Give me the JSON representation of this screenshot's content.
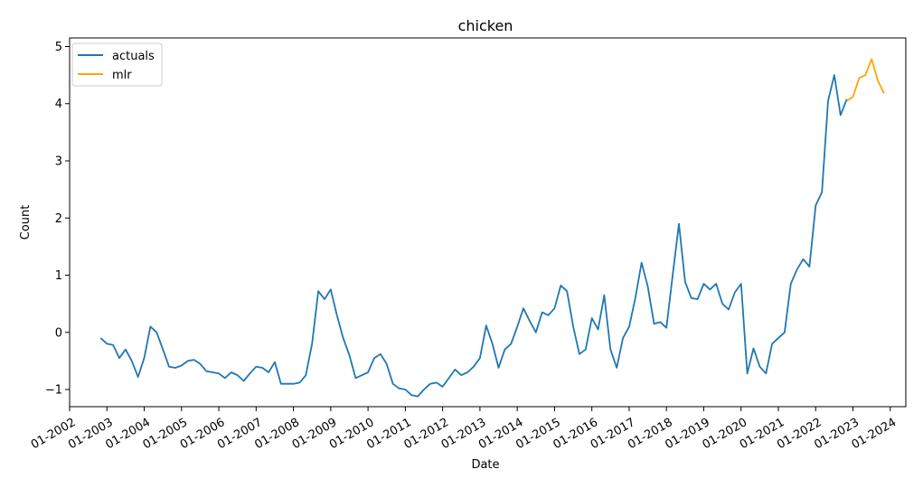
{
  "chart_data": {
    "type": "line",
    "title": "chicken",
    "xlabel": "Date",
    "ylabel": "Count",
    "x_axis": "date",
    "xlim": [
      "2002-01",
      "2024-06"
    ],
    "ylim": [
      -1.3,
      5.15
    ],
    "x_ticks": [
      "01-2002",
      "01-2003",
      "01-2004",
      "01-2005",
      "01-2006",
      "01-2007",
      "01-2008",
      "01-2009",
      "01-2010",
      "01-2011",
      "01-2012",
      "01-2013",
      "01-2014",
      "01-2015",
      "01-2016",
      "01-2017",
      "01-2018",
      "01-2019",
      "01-2020",
      "01-2021",
      "01-2022",
      "01-2023",
      "01-2024"
    ],
    "y_ticks": [
      -1,
      0,
      1,
      2,
      3,
      4,
      5
    ],
    "grid": false,
    "legend_position": "top-left",
    "series": [
      {
        "name": "actuals",
        "color": "#1f77b4",
        "points": [
          [
            "2002-11",
            -0.1
          ],
          [
            "2003-01",
            -0.2
          ],
          [
            "2003-03",
            -0.22
          ],
          [
            "2003-05",
            -0.45
          ],
          [
            "2003-07",
            -0.3
          ],
          [
            "2003-09",
            -0.5
          ],
          [
            "2003-11",
            -0.78
          ],
          [
            "2004-01",
            -0.45
          ],
          [
            "2004-03",
            0.1
          ],
          [
            "2004-05",
            0.0
          ],
          [
            "2004-07",
            -0.3
          ],
          [
            "2004-09",
            -0.6
          ],
          [
            "2004-11",
            -0.62
          ],
          [
            "2005-01",
            -0.58
          ],
          [
            "2005-03",
            -0.5
          ],
          [
            "2005-05",
            -0.48
          ],
          [
            "2005-07",
            -0.55
          ],
          [
            "2005-09",
            -0.68
          ],
          [
            "2005-11",
            -0.7
          ],
          [
            "2006-01",
            -0.72
          ],
          [
            "2006-03",
            -0.8
          ],
          [
            "2006-05",
            -0.7
          ],
          [
            "2006-07",
            -0.75
          ],
          [
            "2006-09",
            -0.85
          ],
          [
            "2006-11",
            -0.72
          ],
          [
            "2007-01",
            -0.6
          ],
          [
            "2007-03",
            -0.62
          ],
          [
            "2007-05",
            -0.7
          ],
          [
            "2007-07",
            -0.52
          ],
          [
            "2007-09",
            -0.9
          ],
          [
            "2007-11",
            -0.9
          ],
          [
            "2008-01",
            -0.9
          ],
          [
            "2008-03",
            -0.88
          ],
          [
            "2008-05",
            -0.75
          ],
          [
            "2008-07",
            -0.2
          ],
          [
            "2008-09",
            0.72
          ],
          [
            "2008-11",
            0.58
          ],
          [
            "2009-01",
            0.75
          ],
          [
            "2009-03",
            0.3
          ],
          [
            "2009-05",
            -0.1
          ],
          [
            "2009-07",
            -0.4
          ],
          [
            "2009-09",
            -0.8
          ],
          [
            "2009-11",
            -0.75
          ],
          [
            "2010-01",
            -0.7
          ],
          [
            "2010-03",
            -0.45
          ],
          [
            "2010-05",
            -0.38
          ],
          [
            "2010-07",
            -0.55
          ],
          [
            "2010-09",
            -0.9
          ],
          [
            "2010-11",
            -0.98
          ],
          [
            "2011-01",
            -1.0
          ],
          [
            "2011-03",
            -1.1
          ],
          [
            "2011-05",
            -1.12
          ],
          [
            "2011-07",
            -1.0
          ],
          [
            "2011-09",
            -0.9
          ],
          [
            "2011-11",
            -0.88
          ],
          [
            "2012-01",
            -0.95
          ],
          [
            "2012-03",
            -0.8
          ],
          [
            "2012-05",
            -0.65
          ],
          [
            "2012-07",
            -0.75
          ],
          [
            "2012-09",
            -0.7
          ],
          [
            "2012-11",
            -0.6
          ],
          [
            "2013-01",
            -0.45
          ],
          [
            "2013-03",
            0.12
          ],
          [
            "2013-05",
            -0.2
          ],
          [
            "2013-07",
            -0.62
          ],
          [
            "2013-09",
            -0.3
          ],
          [
            "2013-11",
            -0.2
          ],
          [
            "2014-01",
            0.1
          ],
          [
            "2014-03",
            0.42
          ],
          [
            "2014-05",
            0.2
          ],
          [
            "2014-07",
            0.0
          ],
          [
            "2014-09",
            0.35
          ],
          [
            "2014-11",
            0.3
          ],
          [
            "2015-01",
            0.42
          ],
          [
            "2015-03",
            0.82
          ],
          [
            "2015-05",
            0.72
          ],
          [
            "2015-07",
            0.1
          ],
          [
            "2015-09",
            -0.38
          ],
          [
            "2015-11",
            -0.3
          ],
          [
            "2016-01",
            0.25
          ],
          [
            "2016-03",
            0.05
          ],
          [
            "2016-05",
            0.65
          ],
          [
            "2016-07",
            -0.3
          ],
          [
            "2016-09",
            -0.62
          ],
          [
            "2016-11",
            -0.1
          ],
          [
            "2017-01",
            0.1
          ],
          [
            "2017-03",
            0.6
          ],
          [
            "2017-05",
            1.22
          ],
          [
            "2017-07",
            0.8
          ],
          [
            "2017-09",
            0.15
          ],
          [
            "2017-11",
            0.18
          ],
          [
            "2018-01",
            0.08
          ],
          [
            "2018-03",
            1.0
          ],
          [
            "2018-05",
            1.9
          ],
          [
            "2018-07",
            0.88
          ],
          [
            "2018-09",
            0.6
          ],
          [
            "2018-11",
            0.58
          ],
          [
            "2019-01",
            0.85
          ],
          [
            "2019-03",
            0.75
          ],
          [
            "2019-05",
            0.85
          ],
          [
            "2019-07",
            0.5
          ],
          [
            "2019-09",
            0.4
          ],
          [
            "2019-11",
            0.7
          ],
          [
            "2020-01",
            0.85
          ],
          [
            "2020-03",
            -0.72
          ],
          [
            "2020-05",
            -0.28
          ],
          [
            "2020-07",
            -0.6
          ],
          [
            "2020-09",
            -0.72
          ],
          [
            "2020-11",
            -0.2
          ],
          [
            "2021-01",
            -0.1
          ],
          [
            "2021-03",
            0.0
          ],
          [
            "2021-05",
            0.85
          ],
          [
            "2021-07",
            1.1
          ],
          [
            "2021-09",
            1.28
          ],
          [
            "2021-11",
            1.15
          ],
          [
            "2022-01",
            2.22
          ],
          [
            "2022-03",
            2.45
          ],
          [
            "2022-05",
            4.05
          ],
          [
            "2022-07",
            4.5
          ],
          [
            "2022-09",
            3.8
          ],
          [
            "2022-11",
            4.08
          ]
        ]
      },
      {
        "name": "mlr",
        "color": "#ffa500",
        "points": [
          [
            "2022-11",
            4.05
          ],
          [
            "2023-01",
            4.12
          ],
          [
            "2023-03",
            4.45
          ],
          [
            "2023-05",
            4.5
          ],
          [
            "2023-07",
            4.78
          ],
          [
            "2023-09",
            4.4
          ],
          [
            "2023-11",
            4.18
          ]
        ]
      }
    ]
  }
}
